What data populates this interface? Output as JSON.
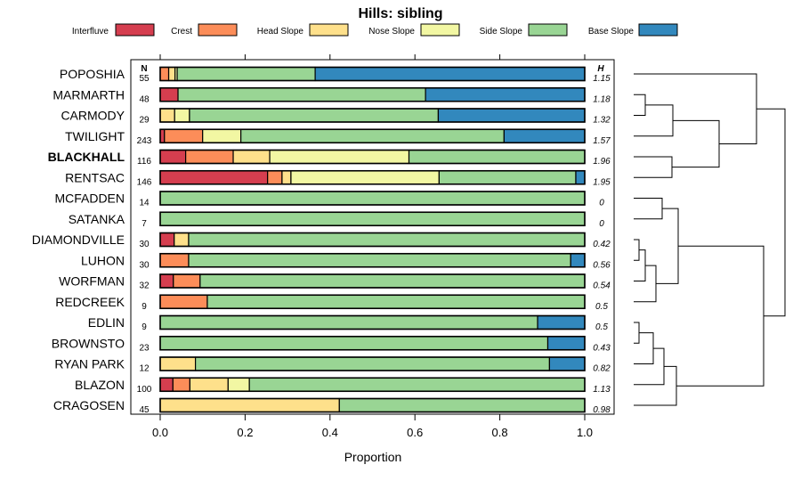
{
  "chart_data": {
    "type": "bar",
    "orientation": "horizontal",
    "stacked": true,
    "title": "Hills: sibling",
    "xlabel": "Proportion",
    "xlim": [
      0,
      1
    ],
    "xticks": [
      "0.0",
      "0.2",
      "0.4",
      "0.6",
      "0.8",
      "1.0"
    ],
    "n_header": "N",
    "h_header": "H",
    "legend": [
      {
        "name": "Interfluve",
        "color": "#D53E4F"
      },
      {
        "name": "Crest",
        "color": "#FC8D59"
      },
      {
        "name": "Head Slope",
        "color": "#FEE08B"
      },
      {
        "name": "Nose Slope",
        "color": "#F2F7A3"
      },
      {
        "name": "Side Slope",
        "color": "#99D594"
      },
      {
        "name": "Base Slope",
        "color": "#3288BD"
      }
    ],
    "highlighted": "BLACKHALL",
    "rows": [
      {
        "name": "POPOSHIA",
        "n": "55",
        "h": "1.15",
        "values": [
          0,
          0.02,
          0.015,
          0.005,
          0.325,
          0.635
        ]
      },
      {
        "name": "MARMARTH",
        "n": "48",
        "h": "1.18",
        "values": [
          0.042,
          0,
          0,
          0,
          0.583,
          0.375
        ]
      },
      {
        "name": "CARMODY",
        "n": "29",
        "h": "1.32",
        "values": [
          0,
          0,
          0.034,
          0.035,
          0.586,
          0.345
        ]
      },
      {
        "name": "TWILIGHT",
        "n": "243",
        "h": "1.57",
        "values": [
          0.01,
          0.09,
          0,
          0.09,
          0.62,
          0.19
        ]
      },
      {
        "name": "BLACKHALL",
        "n": "116",
        "h": "1.96",
        "values": [
          0.06,
          0.112,
          0.086,
          0.328,
          0.414,
          0
        ]
      },
      {
        "name": "RENTSAC",
        "n": "146",
        "h": "1.95",
        "values": [
          0.253,
          0.034,
          0.021,
          0.349,
          0.322,
          0.021
        ]
      },
      {
        "name": "MCFADDEN",
        "n": "14",
        "h": "0",
        "values": [
          0,
          0,
          0,
          0,
          1,
          0
        ]
      },
      {
        "name": "SATANKA",
        "n": "7",
        "h": "0",
        "values": [
          0,
          0,
          0,
          0,
          1,
          0
        ]
      },
      {
        "name": "DIAMONDVILLE",
        "n": "30",
        "h": "0.42",
        "values": [
          0.033,
          0,
          0.034,
          0,
          0.933,
          0
        ]
      },
      {
        "name": "LUHON",
        "n": "30",
        "h": "0.56",
        "values": [
          0,
          0.067,
          0,
          0,
          0.9,
          0.033
        ]
      },
      {
        "name": "WORFMAN",
        "n": "32",
        "h": "0.54",
        "values": [
          0.031,
          0.063,
          0,
          0,
          0.906,
          0
        ]
      },
      {
        "name": "REDCREEK",
        "n": "9",
        "h": "0.5",
        "values": [
          0,
          0.111,
          0,
          0,
          0.889,
          0
        ]
      },
      {
        "name": "EDLIN",
        "n": "9",
        "h": "0.5",
        "values": [
          0,
          0,
          0,
          0,
          0.889,
          0.111
        ]
      },
      {
        "name": "BROWNSTO",
        "n": "23",
        "h": "0.43",
        "values": [
          0,
          0,
          0,
          0,
          0.913,
          0.087
        ]
      },
      {
        "name": "RYAN PARK",
        "n": "12",
        "h": "0.82",
        "values": [
          0,
          0,
          0.083,
          0,
          0.834,
          0.083
        ]
      },
      {
        "name": "BLAZON",
        "n": "100",
        "h": "1.13",
        "values": [
          0.03,
          0.04,
          0.09,
          0.05,
          0.79,
          0
        ]
      },
      {
        "name": "CRAGOSEN",
        "n": "45",
        "h": "0.98",
        "values": [
          0,
          0,
          0.422,
          0,
          0.578,
          0
        ]
      }
    ]
  }
}
